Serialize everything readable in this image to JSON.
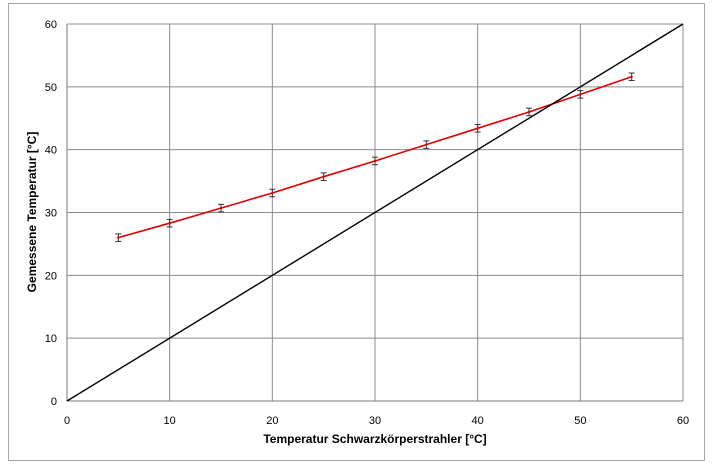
{
  "chart_data": {
    "type": "line",
    "title": "",
    "xlabel": "Temperatur Schwarzkörperstrahler [°C]",
    "ylabel": "Gemessene Temperatur [°C]",
    "xlim": [
      0,
      60
    ],
    "ylim": [
      0,
      60
    ],
    "xticks": [
      0,
      10,
      20,
      30,
      40,
      50,
      60
    ],
    "yticks": [
      0,
      10,
      20,
      30,
      40,
      50,
      60
    ],
    "grid": true,
    "legend": "none",
    "series": [
      {
        "color": "#e00000",
        "markers": "error-bars",
        "x": [
          5,
          10,
          15,
          20,
          25,
          30,
          35,
          40,
          45,
          50,
          55
        ],
        "y": [
          26.0,
          28.3,
          30.7,
          33.1,
          35.7,
          38.2,
          40.8,
          43.4,
          46.0,
          48.8,
          51.6
        ],
        "error": [
          0.6,
          0.6,
          0.6,
          0.6,
          0.6,
          0.6,
          0.6,
          0.6,
          0.6,
          0.6,
          0.6
        ]
      },
      {
        "color": "#000000",
        "markers": "none",
        "x": [
          0,
          60
        ],
        "y": [
          0,
          60
        ]
      }
    ]
  }
}
